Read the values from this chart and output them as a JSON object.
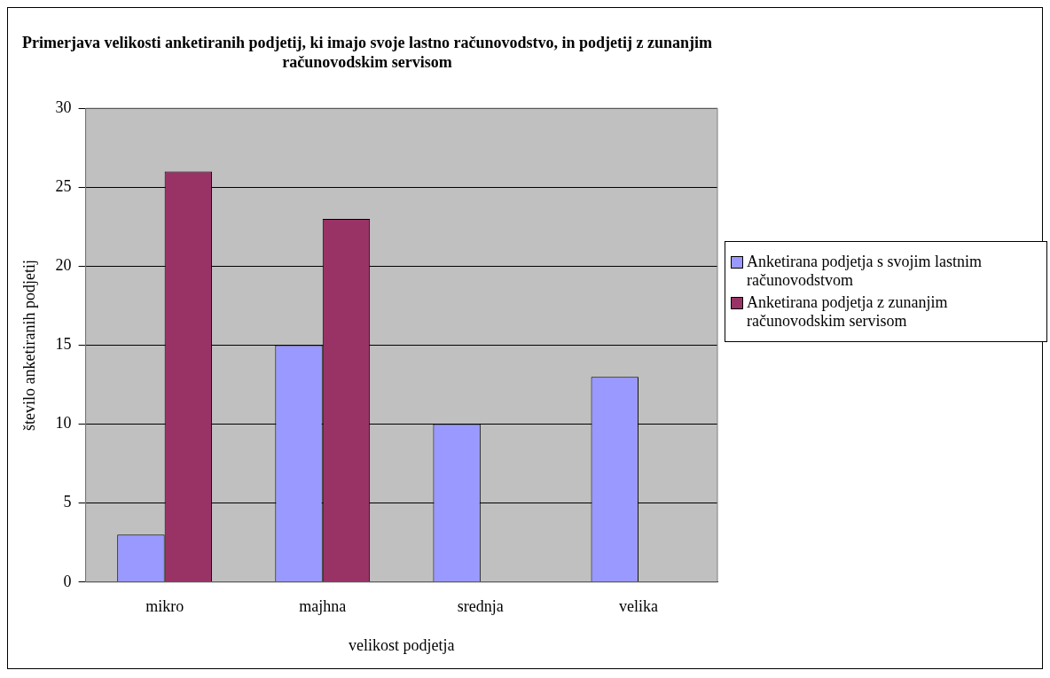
{
  "chart_data": {
    "type": "bar",
    "title": "Primerjava velikosti anketiranih podjetij, ki imajo svoje lastno računovodstvo, in podjetij z zunanjim računovodskim servisom",
    "xlabel": "velikost podjetja",
    "ylabel": "število anketiranih podjetij",
    "categories": [
      "mikro",
      "majhna",
      "srednja",
      "velika"
    ],
    "series": [
      {
        "name": "Anketirana podjetja s svojim lastnim računovodstvom",
        "color": "#9999ff",
        "values": [
          3,
          15,
          10,
          13
        ]
      },
      {
        "name": "Anketirana podjetja z zunanjim računovodskim servisom",
        "color": "#993366",
        "values": [
          26,
          23,
          0,
          0
        ]
      }
    ],
    "ylim": [
      0,
      30
    ],
    "yticks": [
      0,
      5,
      10,
      15,
      20,
      25,
      30
    ],
    "grid": "y",
    "legend": "right"
  }
}
